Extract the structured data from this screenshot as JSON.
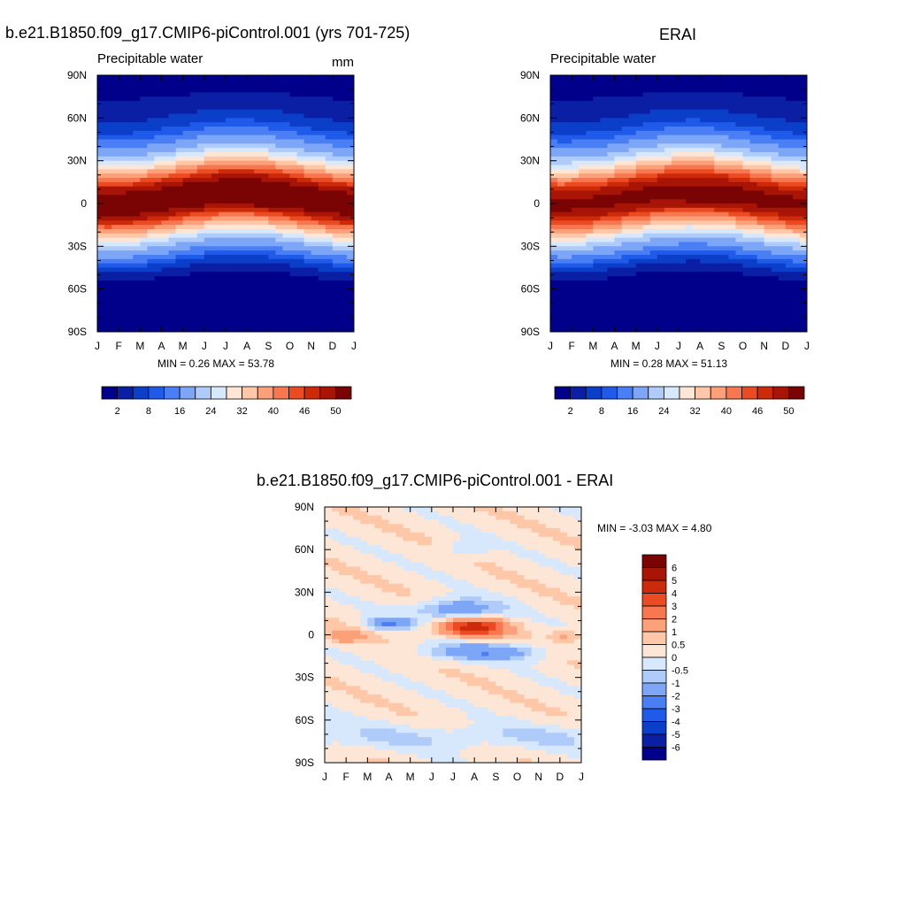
{
  "panels": {
    "model": {
      "title": "b.e21.B1850.f09_g17.CMIP6-piControl.001 (yrs 701-725)",
      "variable": "Precipitable water",
      "units": "mm",
      "stats": "MIN =   0.26 MAX =  53.78"
    },
    "obs": {
      "title": "ERAI",
      "variable": "Precipitable water",
      "stats": "MIN =   0.28 MAX =  51.13"
    },
    "diff": {
      "title": "b.e21.B1850.f09_g17.CMIP6-piControl.001 - ERAI",
      "stats": "MIN =  -3.03 MAX =   4.80"
    }
  },
  "colors": {
    "abs_scale": [
      "#00008b",
      "#0a1fa3",
      "#0b3ec9",
      "#1f5ae8",
      "#4a7ef5",
      "#7ea6f7",
      "#aecbfa",
      "#d8e8fc",
      "#fde6d6",
      "#fdc7a8",
      "#fca07a",
      "#f77750",
      "#eb4b22",
      "#cd2a0a",
      "#a81405",
      "#7a0403"
    ],
    "diff_scale": [
      "#00008b",
      "#0a1fa3",
      "#0b3ec9",
      "#1f5ae8",
      "#4a7ef5",
      "#7ea6f7",
      "#aecbfa",
      "#d8e8fc",
      "#fde6d6",
      "#fdc7a8",
      "#fca07a",
      "#f77750",
      "#eb4b22",
      "#cd2a0a",
      "#a81405",
      "#7a0403"
    ]
  },
  "chart_data": [
    {
      "type": "heatmap",
      "panel": "model",
      "title": "b.e21.B1850.f09_g17.CMIP6-piControl.001 (yrs 701-725)",
      "subtitle": "Precipitable water",
      "units": "mm",
      "x_ticks": [
        "J",
        "F",
        "M",
        "A",
        "M",
        "J",
        "J",
        "A",
        "S",
        "O",
        "N",
        "D",
        "J"
      ],
      "y_ticks": [
        "90N",
        "60N",
        "30N",
        "0",
        "30S",
        "60S",
        "90S"
      ],
      "y_tick_values": [
        90,
        60,
        30,
        0,
        -30,
        -60,
        -90
      ],
      "min": 0.26,
      "max": 53.78,
      "colorbar_labels": [
        "2",
        "8",
        "16",
        "24",
        "32",
        "40",
        "46",
        "50"
      ],
      "equator_peak_month": "Aug",
      "zonal_profile": {
        "lat": [
          90,
          60,
          30,
          0,
          -30,
          -60,
          -90
        ],
        "pw_annual_approx": [
          3,
          8,
          25,
          48,
          25,
          8,
          1
        ]
      }
    },
    {
      "type": "heatmap",
      "panel": "obs",
      "title": "ERAI",
      "subtitle": "Precipitable water",
      "x_ticks": [
        "J",
        "F",
        "M",
        "A",
        "M",
        "J",
        "J",
        "A",
        "S",
        "O",
        "N",
        "D",
        "J"
      ],
      "y_ticks": [
        "90N",
        "60N",
        "30N",
        "0",
        "30S",
        "60S",
        "90S"
      ],
      "y_tick_values": [
        90,
        60,
        30,
        0,
        -30,
        -60,
        -90
      ],
      "min": 0.28,
      "max": 51.13,
      "colorbar_labels": [
        "2",
        "8",
        "16",
        "24",
        "32",
        "40",
        "46",
        "50"
      ],
      "zonal_profile": {
        "lat": [
          90,
          60,
          30,
          0,
          -30,
          -60,
          -90
        ],
        "pw_annual_approx": [
          3,
          8,
          25,
          46,
          25,
          8,
          1
        ]
      }
    },
    {
      "type": "heatmap",
      "panel": "diff",
      "title": "b.e21.B1850.f09_g17.CMIP6-piControl.001 - ERAI",
      "x_ticks": [
        "J",
        "F",
        "M",
        "A",
        "M",
        "J",
        "J",
        "A",
        "S",
        "O",
        "N",
        "D",
        "J"
      ],
      "y_ticks": [
        "90N",
        "60N",
        "30N",
        "0",
        "30S",
        "60S",
        "90S"
      ],
      "y_tick_values": [
        90,
        60,
        30,
        0,
        -30,
        -60,
        -90
      ],
      "min": -3.03,
      "max": 4.8,
      "colorbar_labels": [
        "6",
        "5",
        "4",
        "3",
        "2",
        "1",
        "0.5",
        "0",
        "-0.5",
        "-1",
        "-2",
        "-3",
        "-4",
        "-5",
        "-6"
      ]
    }
  ]
}
